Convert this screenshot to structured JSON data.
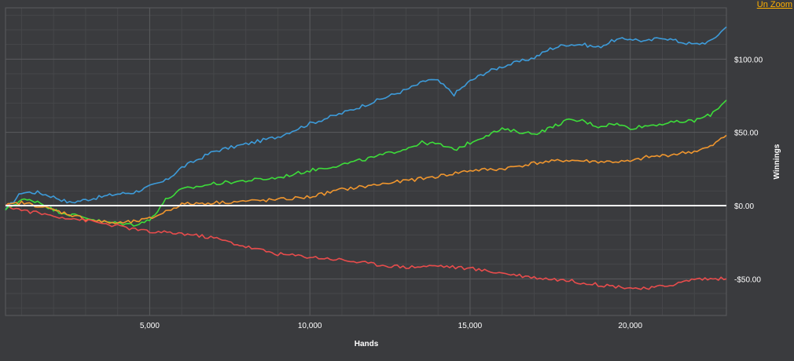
{
  "toolbar": {
    "unzoom_label": "Un Zoom"
  },
  "colors": {
    "background": "#3a3b3e",
    "grid_major": "#5a5b5e",
    "grid_minor": "#46474a",
    "zero_line": "#ffffff",
    "unzoom_link": "#ffb000"
  },
  "chart_data": {
    "type": "line",
    "xlabel": "Hands",
    "ylabel": "Winnings",
    "xlim": [
      500,
      23000
    ],
    "ylim": [
      -75,
      135
    ],
    "x_ticks": [
      5000,
      10000,
      15000,
      20000
    ],
    "x_tick_labels": [
      "5,000",
      "10,000",
      "15,000",
      "20,000"
    ],
    "y_ticks": [
      100,
      50,
      0,
      -50
    ],
    "y_tick_labels": [
      "$100.00",
      "$50.00",
      "$0.00",
      "-$50.00"
    ],
    "grid": true,
    "series": [
      {
        "color": "#3d9bd9",
        "x": [
          500,
          1000,
          1500,
          2000,
          2500,
          3000,
          3500,
          4000,
          4500,
          5000,
          5500,
          6000,
          7000,
          8000,
          9000,
          10000,
          11000,
          12000,
          13000,
          13700,
          14000,
          14500,
          15000,
          15500,
          16000,
          17000,
          17500,
          18000,
          18500,
          19000,
          19500,
          20000,
          20500,
          21000,
          21500,
          22000,
          22500,
          23000
        ],
        "values": [
          -3,
          9,
          9,
          6,
          2,
          4,
          6,
          8,
          9,
          13,
          17,
          26,
          37,
          42,
          47,
          56,
          63,
          71,
          79,
          86,
          85,
          76,
          85,
          91,
          95,
          101,
          107,
          110,
          110,
          108,
          113,
          114,
          112,
          115,
          112,
          110,
          112,
          122
        ]
      },
      {
        "color": "#3ddc3a",
        "x": [
          500,
          1000,
          1500,
          2000,
          2500,
          3000,
          3500,
          4000,
          4500,
          5000,
          5500,
          6000,
          7000,
          8000,
          9000,
          10000,
          11000,
          12000,
          13000,
          13500,
          14000,
          14500,
          15000,
          15500,
          16000,
          17000,
          17500,
          18000,
          18500,
          19000,
          19500,
          20000,
          21000,
          22000,
          22500,
          23000
        ],
        "values": [
          -3,
          4,
          3,
          -3,
          -6,
          -8,
          -11,
          -12,
          -13,
          -10,
          4,
          11,
          15,
          17,
          19,
          24,
          28,
          33,
          39,
          43,
          42,
          38,
          43,
          48,
          52,
          49,
          53,
          58,
          58,
          54,
          56,
          53,
          56,
          58,
          62,
          72
        ]
      },
      {
        "color": "#f0962e",
        "x": [
          500,
          1000,
          1500,
          2000,
          2500,
          3000,
          3500,
          4000,
          4500,
          5000,
          5500,
          6000,
          7000,
          8000,
          9000,
          10000,
          11000,
          12000,
          13000,
          14000,
          15000,
          16000,
          17000,
          18000,
          19000,
          20000,
          20500,
          21000,
          22000,
          22500,
          23000
        ],
        "values": [
          0,
          2,
          0,
          -3,
          -6,
          -9,
          -11,
          -12,
          -11,
          -9,
          -4,
          1,
          2,
          3,
          4,
          6,
          11,
          14,
          17,
          20,
          24,
          25,
          29,
          31,
          30,
          30,
          33,
          34,
          37,
          40,
          48
        ]
      },
      {
        "color": "#e84c4c",
        "x": [
          500,
          1000,
          2000,
          3000,
          4000,
          5000,
          6000,
          7000,
          8000,
          9000,
          10000,
          11000,
          12000,
          13000,
          14000,
          15000,
          16000,
          17000,
          18000,
          19000,
          20000,
          20500,
          21000,
          21500,
          22000,
          22500,
          23000
        ],
        "values": [
          0,
          -3,
          -7,
          -10,
          -14,
          -18,
          -19,
          -22,
          -28,
          -33,
          -35,
          -37,
          -40,
          -42,
          -41,
          -43,
          -46,
          -49,
          -51,
          -54,
          -56,
          -57,
          -55,
          -53,
          -50,
          -50,
          -50
        ]
      }
    ]
  }
}
